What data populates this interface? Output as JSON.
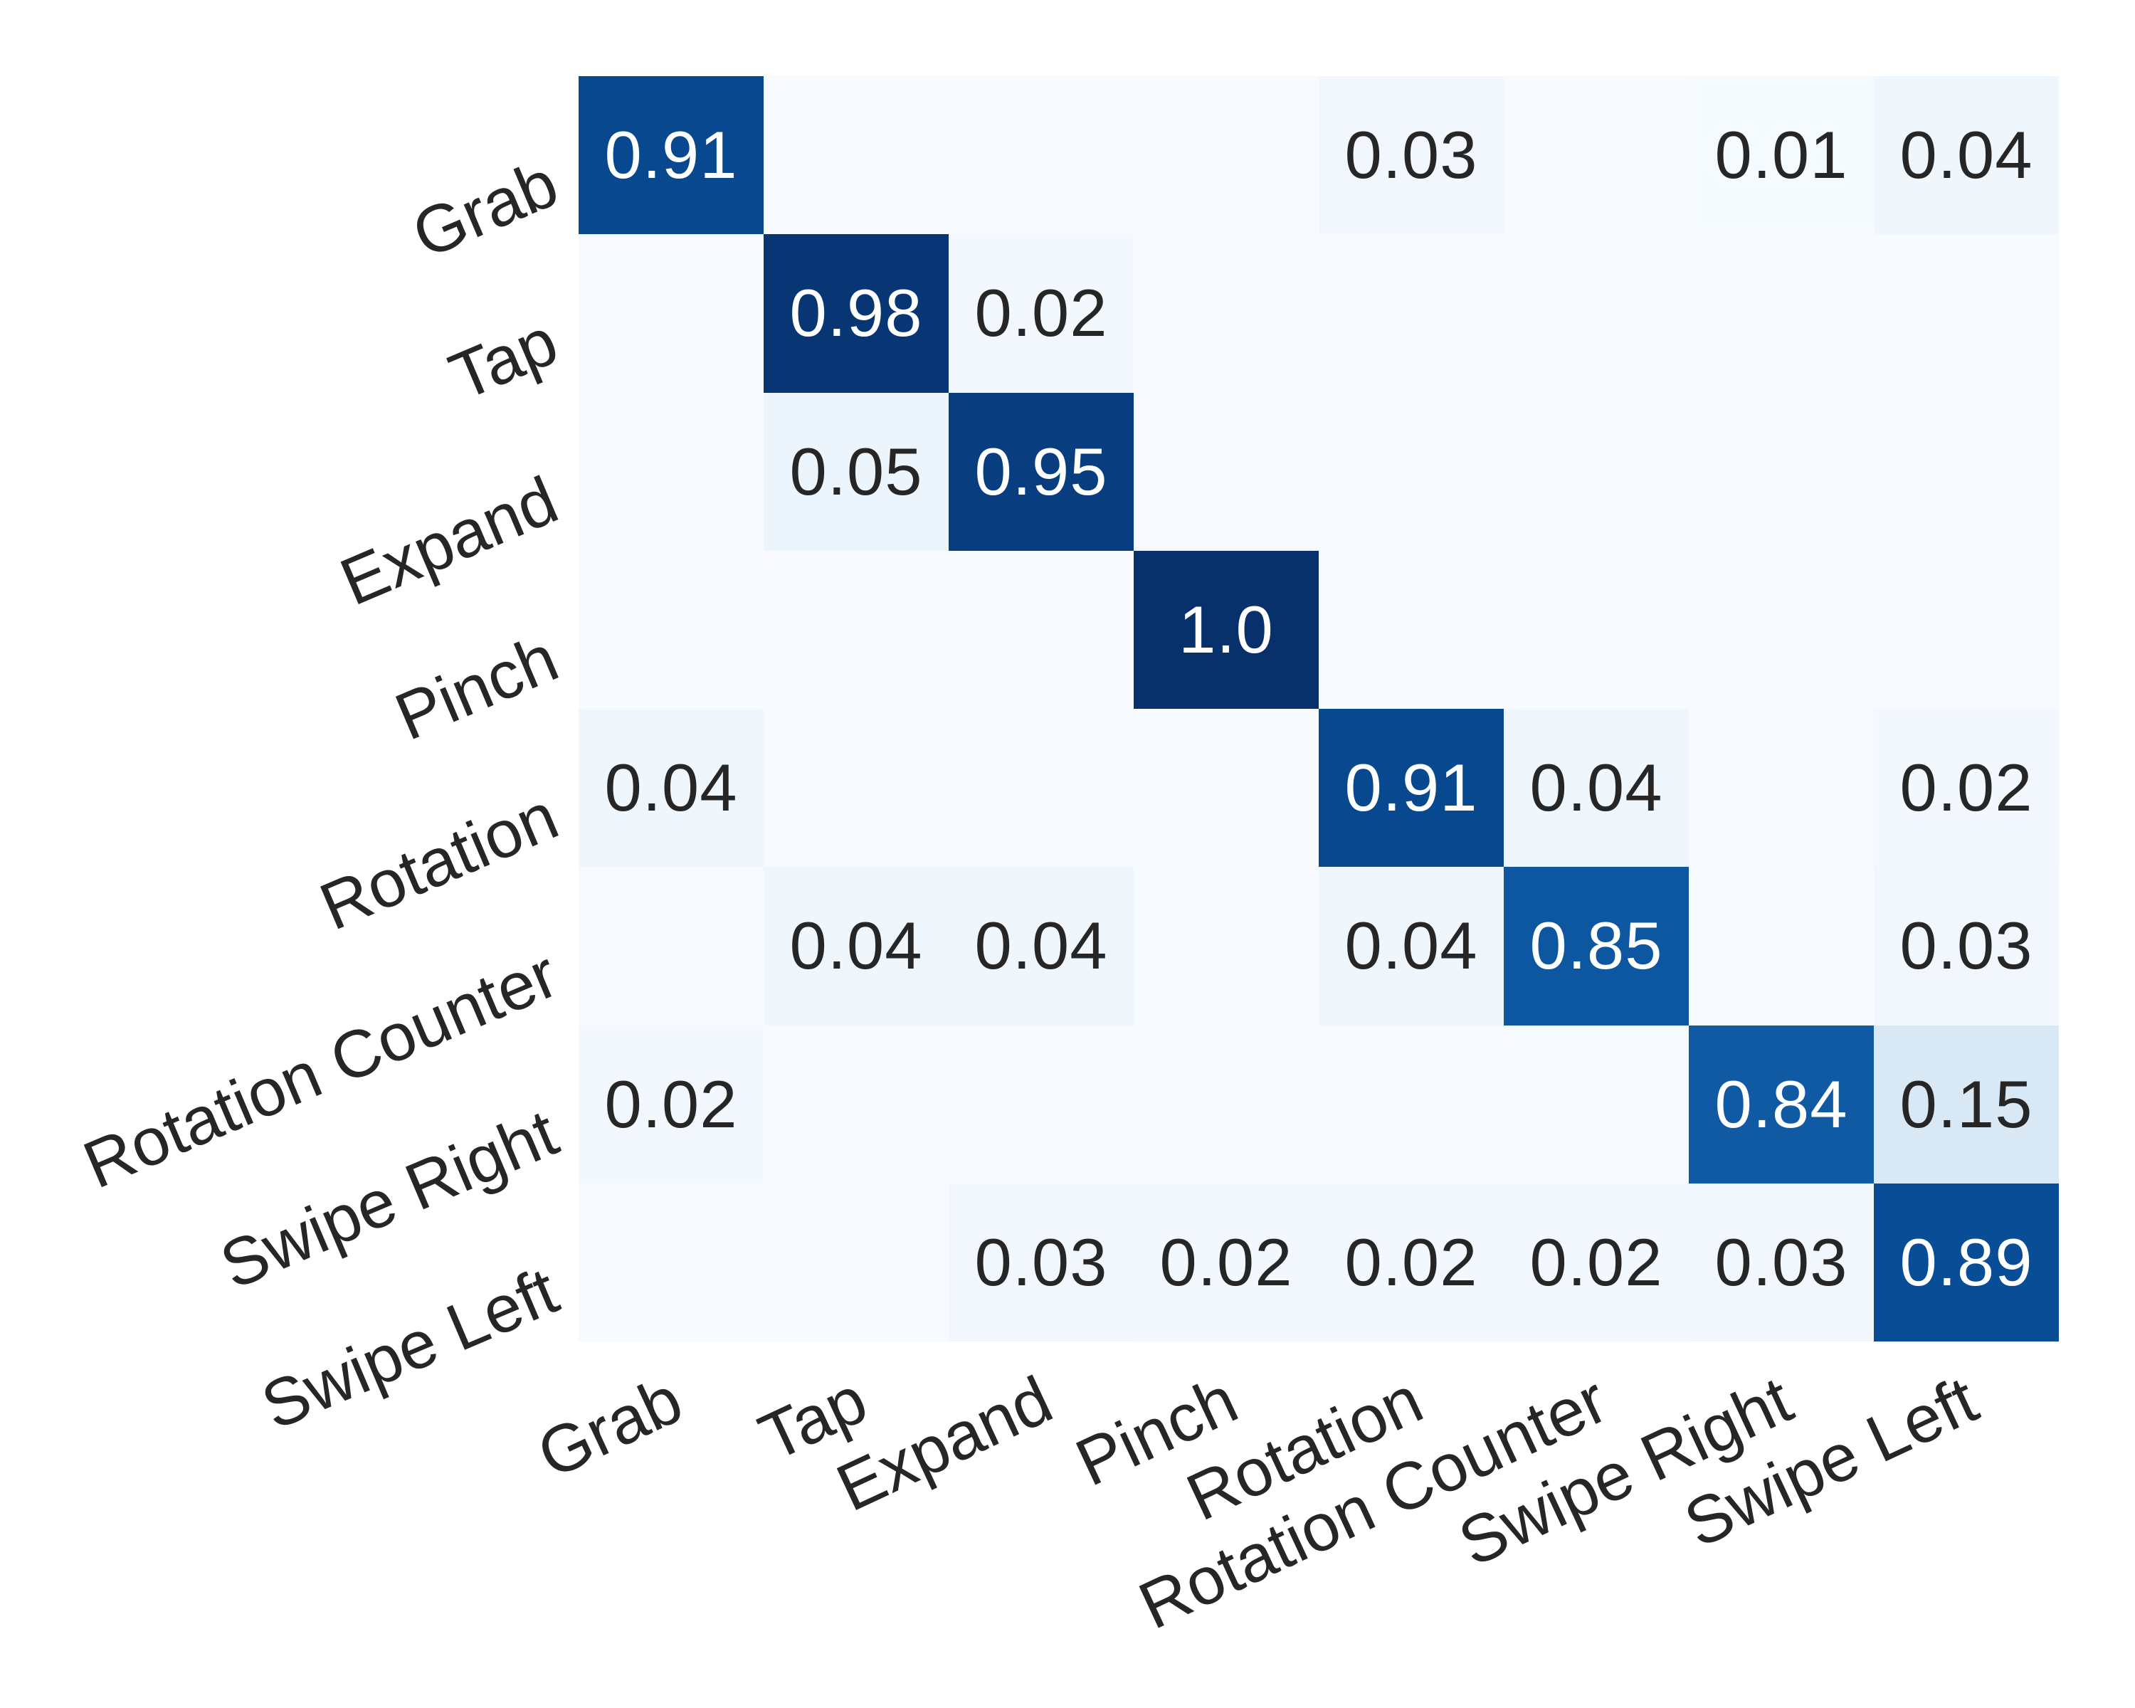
{
  "chart_data": {
    "type": "heatmap",
    "title": "",
    "xlabel": "",
    "ylabel": "",
    "categories": [
      "Grab",
      "Tap",
      "Expand",
      "Pinch",
      "Rotation",
      "Rotation Counter",
      "Swipe Right",
      "Swipe Left"
    ],
    "x_tick_labels": [
      "Grab",
      "Tap",
      "Expand",
      "Pinch",
      "Rotation",
      "Rotation Counter",
      "Swipe Right",
      "Swipe Left"
    ],
    "y_tick_labels": [
      "Grab",
      "Tap",
      "Expand",
      "Pinch",
      "Rotation",
      "Rotation Counter",
      "Swipe Right",
      "Swipe Left"
    ],
    "matrix": [
      [
        0.91,
        0,
        0,
        0,
        0.03,
        0,
        0.01,
        0.04
      ],
      [
        0,
        0.98,
        0.02,
        0,
        0,
        0,
        0,
        0
      ],
      [
        0,
        0.05,
        0.95,
        0,
        0,
        0,
        0,
        0
      ],
      [
        0,
        0,
        0,
        1.0,
        0,
        0,
        0,
        0
      ],
      [
        0.04,
        0,
        0,
        0,
        0.91,
        0.04,
        0,
        0.02
      ],
      [
        0,
        0.04,
        0.04,
        0,
        0.04,
        0.85,
        0,
        0.03
      ],
      [
        0.02,
        0,
        0,
        0,
        0,
        0,
        0.84,
        0.15
      ],
      [
        0,
        0,
        0.03,
        0.02,
        0.02,
        0.02,
        0.03,
        0.89
      ]
    ],
    "value_range": [
      0,
      1
    ],
    "annotation_style": "non-zero values printed with two significant decimals; zero cells left blank; 1.0 shown as 1.0",
    "grid": false,
    "legend": "none",
    "colormap": {
      "name": "Blues",
      "anchors": [
        "#f7fbff",
        "#deebf7",
        "#c6dbef",
        "#9ecae1",
        "#6baed6",
        "#4292c6",
        "#2171b5",
        "#08519c",
        "#08306b"
      ]
    },
    "colors": {
      "background": "#ffffff",
      "annotation_on_dark": "#ffffff",
      "annotation_on_light": "#262626",
      "tick_label_color": "#262626"
    }
  }
}
